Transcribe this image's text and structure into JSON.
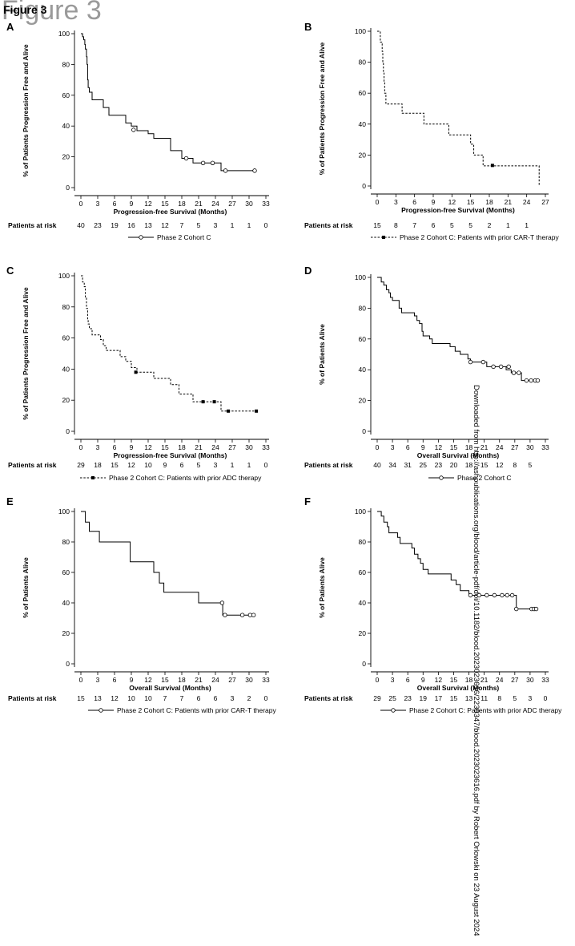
{
  "figure": {
    "watermark": "Figure 3",
    "title": "Figure 3"
  },
  "side_note": "Downloaded from http://ashpublications.org/blood/article-pdf/doi/10.1182/blood.2023023616/2239347/blood.2023023616.pdf by Robert Orlowski on 23 August 2024",
  "chart_data": [
    {
      "panel": "A",
      "type": "line",
      "xlabel": "Progression-free Survival (Months)",
      "ylabel": "% of Patients Progression Free and Alive",
      "xticks": [
        0,
        3,
        6,
        9,
        12,
        15,
        18,
        21,
        24,
        27,
        30,
        33
      ],
      "yticks": [
        0,
        20,
        40,
        60,
        80,
        100
      ],
      "xlim": [
        0,
        33
      ],
      "ylim": [
        0,
        100
      ],
      "style": "solid",
      "steps": [
        [
          0,
          100
        ],
        [
          0.3,
          98
        ],
        [
          0.5,
          96
        ],
        [
          0.7,
          93
        ],
        [
          0.8,
          90
        ],
        [
          1.0,
          85
        ],
        [
          1.1,
          80
        ],
        [
          1.2,
          70
        ],
        [
          1.3,
          65
        ],
        [
          1.5,
          62
        ],
        [
          2.0,
          57
        ],
        [
          4.0,
          52
        ],
        [
          5.0,
          47
        ],
        [
          8.0,
          42
        ],
        [
          9.0,
          40
        ],
        [
          10.0,
          37
        ],
        [
          12.0,
          35
        ],
        [
          13.0,
          32
        ],
        [
          16.0,
          24
        ],
        [
          18.0,
          19
        ],
        [
          20.0,
          16
        ],
        [
          25.0,
          11
        ],
        [
          31.0,
          11
        ]
      ],
      "censors": [
        [
          9.4,
          37.5
        ],
        [
          18.8,
          19
        ],
        [
          21.8,
          16
        ],
        [
          23.5,
          16
        ],
        [
          25.8,
          11
        ],
        [
          31.0,
          11
        ]
      ],
      "at_risk_label": "Patients at risk",
      "at_risk": [
        "40",
        "23",
        "19",
        "16",
        "13",
        "12",
        "7",
        "5",
        "3",
        "1",
        "1",
        "0"
      ],
      "legend": "Phase 2 Cohort C"
    },
    {
      "panel": "B",
      "type": "line",
      "xlabel": "Progression-free Survival (Months)",
      "ylabel": "% of Patients Progression Free and Alive",
      "xticks": [
        0,
        3,
        6,
        9,
        12,
        15,
        18,
        21,
        24,
        27
      ],
      "yticks": [
        0,
        20,
        40,
        60,
        80,
        100
      ],
      "xlim": [
        0,
        27
      ],
      "ylim": [
        0,
        100
      ],
      "style": "dashed",
      "steps": [
        [
          0,
          100
        ],
        [
          0.5,
          93
        ],
        [
          0.8,
          87
        ],
        [
          0.9,
          80
        ],
        [
          1.0,
          73
        ],
        [
          1.1,
          67
        ],
        [
          1.2,
          60
        ],
        [
          1.4,
          53
        ],
        [
          4.0,
          47
        ],
        [
          7.5,
          40
        ],
        [
          11.5,
          33
        ],
        [
          15.0,
          27
        ],
        [
          15.5,
          20
        ],
        [
          17.0,
          13
        ],
        [
          26.0,
          13
        ],
        [
          26.0,
          0
        ]
      ],
      "censors": [
        [
          18.5,
          13.3
        ]
      ],
      "at_risk_label": "Patients at risk",
      "at_risk": [
        "15",
        "8",
        "7",
        "6",
        "5",
        "5",
        "2",
        "1",
        "1"
      ],
      "legend": "Phase 2 Cohort C: Patients with prior CAR-T therapy"
    },
    {
      "panel": "C",
      "type": "line",
      "xlabel": "Progression-free Survival (Months)",
      "ylabel": "% of Patients Progression Free and Alive",
      "xticks": [
        0,
        3,
        6,
        9,
        12,
        15,
        18,
        21,
        24,
        27,
        30,
        33
      ],
      "yticks": [
        0,
        20,
        40,
        60,
        80,
        100
      ],
      "xlim": [
        0,
        33
      ],
      "ylim": [
        0,
        100
      ],
      "style": "dashed",
      "steps": [
        [
          0,
          100
        ],
        [
          0.3,
          96
        ],
        [
          0.6,
          93
        ],
        [
          0.8,
          86
        ],
        [
          1.0,
          79
        ],
        [
          1.2,
          72
        ],
        [
          1.3,
          69
        ],
        [
          1.5,
          66
        ],
        [
          2.0,
          62
        ],
        [
          3.5,
          59
        ],
        [
          4.0,
          55
        ],
        [
          4.5,
          52
        ],
        [
          7.0,
          48
        ],
        [
          8.0,
          45
        ],
        [
          9.0,
          41
        ],
        [
          10.0,
          38
        ],
        [
          13.0,
          34
        ],
        [
          16.0,
          30
        ],
        [
          17.5,
          24
        ],
        [
          20.0,
          19
        ],
        [
          25.0,
          13
        ],
        [
          31.0,
          13
        ]
      ],
      "censors": [
        [
          9.8,
          38
        ],
        [
          21.8,
          19
        ],
        [
          23.8,
          19
        ],
        [
          26.3,
          13
        ],
        [
          31.3,
          13
        ]
      ],
      "at_risk_label": "Patients at risk",
      "at_risk": [
        "29",
        "18",
        "15",
        "12",
        "10",
        "9",
        "6",
        "5",
        "3",
        "1",
        "1",
        "0"
      ],
      "legend": "Phase 2 Cohort C: Patients with prior ADC therapy"
    },
    {
      "panel": "D",
      "type": "line",
      "xlabel": "Overall Survival (Months)",
      "ylabel": "% of Patients Alive",
      "xticks": [
        0,
        3,
        6,
        9,
        12,
        15,
        18,
        21,
        24,
        27,
        30,
        33
      ],
      "yticks": [
        0,
        20,
        40,
        60,
        80,
        100
      ],
      "xlim": [
        0,
        33
      ],
      "ylim": [
        0,
        100
      ],
      "style": "solid",
      "steps": [
        [
          0,
          100
        ],
        [
          0.8,
          97
        ],
        [
          1.3,
          95
        ],
        [
          1.8,
          92
        ],
        [
          2.3,
          90
        ],
        [
          2.6,
          87
        ],
        [
          3.0,
          85
        ],
        [
          4.3,
          80
        ],
        [
          4.8,
          77
        ],
        [
          7.3,
          75
        ],
        [
          7.8,
          72
        ],
        [
          8.3,
          70
        ],
        [
          8.8,
          65
        ],
        [
          9.0,
          62
        ],
        [
          10.3,
          60
        ],
        [
          10.8,
          57
        ],
        [
          14.3,
          55
        ],
        [
          15.3,
          52
        ],
        [
          16.3,
          50
        ],
        [
          17.8,
          47
        ],
        [
          18.3,
          45
        ],
        [
          21.5,
          42
        ],
        [
          25.3,
          40
        ],
        [
          26.3,
          38
        ],
        [
          28.3,
          33
        ],
        [
          30.8,
          33
        ]
      ],
      "censors": [
        [
          18.3,
          45
        ],
        [
          20.8,
          45
        ],
        [
          22.8,
          42
        ],
        [
          24.3,
          42
        ],
        [
          25.8,
          42
        ],
        [
          26.8,
          38
        ],
        [
          27.8,
          38
        ],
        [
          29.3,
          33
        ],
        [
          30.2,
          33
        ],
        [
          31.0,
          33
        ],
        [
          31.5,
          33
        ]
      ],
      "at_risk_label": "Patients at risk",
      "at_risk": [
        "40",
        "34",
        "31",
        "25",
        "23",
        "20",
        "18",
        "15",
        "12",
        "8",
        "5",
        ""
      ],
      "legend": "Phase 2 Cohort C"
    },
    {
      "panel": "E",
      "type": "line",
      "xlabel": "Overall Survival (Months)",
      "ylabel": "% of Patients Alive",
      "xticks": [
        0,
        3,
        6,
        9,
        12,
        15,
        18,
        21,
        24,
        27,
        30,
        33
      ],
      "yticks": [
        0,
        20,
        40,
        60,
        80,
        100
      ],
      "xlim": [
        0,
        33
      ],
      "ylim": [
        0,
        100
      ],
      "style": "solid",
      "steps": [
        [
          0,
          100
        ],
        [
          0.8,
          93
        ],
        [
          1.5,
          87
        ],
        [
          3.3,
          80
        ],
        [
          8.8,
          67
        ],
        [
          13.0,
          60
        ],
        [
          14.0,
          53
        ],
        [
          14.8,
          47
        ],
        [
          21.0,
          40
        ],
        [
          25.3,
          32
        ],
        [
          30.8,
          32
        ]
      ],
      "censors": [
        [
          25.2,
          40
        ],
        [
          25.7,
          32
        ],
        [
          28.8,
          32
        ],
        [
          30.2,
          32
        ],
        [
          30.8,
          32
        ]
      ],
      "at_risk_label": "Patients at risk",
      "at_risk": [
        "15",
        "13",
        "12",
        "10",
        "10",
        "7",
        "7",
        "6",
        "6",
        "3",
        "2",
        "0"
      ],
      "legend": "Phase 2 Cohort C: Patients with prior CAR-T therapy"
    },
    {
      "panel": "F",
      "type": "line",
      "xlabel": "Overall Survival (Months)",
      "ylabel": "% of Patients Alive",
      "xticks": [
        0,
        3,
        6,
        9,
        12,
        15,
        18,
        21,
        24,
        27,
        30,
        33
      ],
      "yticks": [
        0,
        20,
        40,
        60,
        80,
        100
      ],
      "xlim": [
        0,
        33
      ],
      "ylim": [
        0,
        100
      ],
      "style": "solid",
      "steps": [
        [
          0,
          100
        ],
        [
          0.8,
          97
        ],
        [
          1.3,
          93
        ],
        [
          2.0,
          90
        ],
        [
          2.3,
          86
        ],
        [
          4.0,
          83
        ],
        [
          4.5,
          79
        ],
        [
          6.8,
          76
        ],
        [
          7.3,
          72
        ],
        [
          8.0,
          69
        ],
        [
          8.5,
          66
        ],
        [
          9.0,
          62
        ],
        [
          10.0,
          59
        ],
        [
          14.5,
          55
        ],
        [
          15.5,
          52
        ],
        [
          16.3,
          48
        ],
        [
          18.0,
          45
        ],
        [
          27.3,
          36
        ],
        [
          31.0,
          36
        ]
      ],
      "censors": [
        [
          18.3,
          45
        ],
        [
          20.0,
          45
        ],
        [
          21.5,
          45
        ],
        [
          23.0,
          45
        ],
        [
          24.5,
          45
        ],
        [
          25.5,
          45
        ],
        [
          26.5,
          45
        ],
        [
          27.3,
          36
        ],
        [
          30.3,
          36
        ],
        [
          30.8,
          36
        ],
        [
          31.2,
          36
        ]
      ],
      "at_risk_label": "Patients at risk",
      "at_risk": [
        "29",
        "25",
        "23",
        "19",
        "17",
        "15",
        "13",
        "11",
        "8",
        "5",
        "3",
        "0"
      ],
      "legend": "Phase 2 Cohort C: Patients with prior ADC therapy"
    }
  ]
}
